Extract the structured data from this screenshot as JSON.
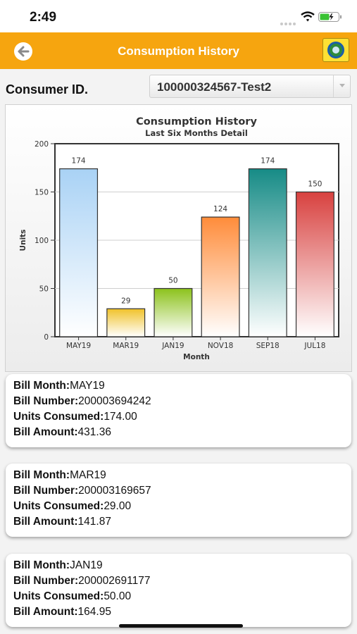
{
  "status_bar": {
    "time": "2:49"
  },
  "header": {
    "title": "Consumption History",
    "back_icon": "back-arrow-icon",
    "logo_icon": "utility-logo-icon"
  },
  "consumer": {
    "label": "Consumer ID.",
    "selected_value": "100000324567-Test2"
  },
  "chart_data": {
    "type": "bar",
    "title": "Consumption History",
    "subtitle": "Last Six Months Detail",
    "xlabel": "Month",
    "ylabel": "Units",
    "categories": [
      "MAY19",
      "MAR19",
      "JAN19",
      "NOV18",
      "SEP18",
      "JUL18"
    ],
    "values": [
      174,
      29,
      50,
      124,
      174,
      150
    ],
    "ylim": [
      0,
      200
    ],
    "yticks": [
      0,
      50,
      100,
      150,
      200
    ],
    "grid": true,
    "bar_colors": [
      "#a9d2f5",
      "#f0c22a",
      "#8cc21c",
      "#ff8c3a",
      "#168b86",
      "#d8413f"
    ]
  },
  "bills": [
    {
      "month_label": "Bill Month:",
      "month": "MAY19",
      "number_label": "Bill Number:",
      "number": "200003694242",
      "units_label": "Units Consumed:",
      "units": "174.00",
      "amount_label": "Bill Amount:",
      "amount": "431.36"
    },
    {
      "month_label": "Bill Month:",
      "month": "MAR19",
      "number_label": "Bill Number:",
      "number": "200003169657",
      "units_label": "Units Consumed:",
      "units": "29.00",
      "amount_label": "Bill Amount:",
      "amount": "141.87"
    },
    {
      "month_label": "Bill Month:",
      "month": "JAN19",
      "number_label": "Bill Number:",
      "number": "200002691177",
      "units_label": "Units Consumed:",
      "units": "50.00",
      "amount_label": "Bill Amount:",
      "amount": "164.95"
    }
  ]
}
